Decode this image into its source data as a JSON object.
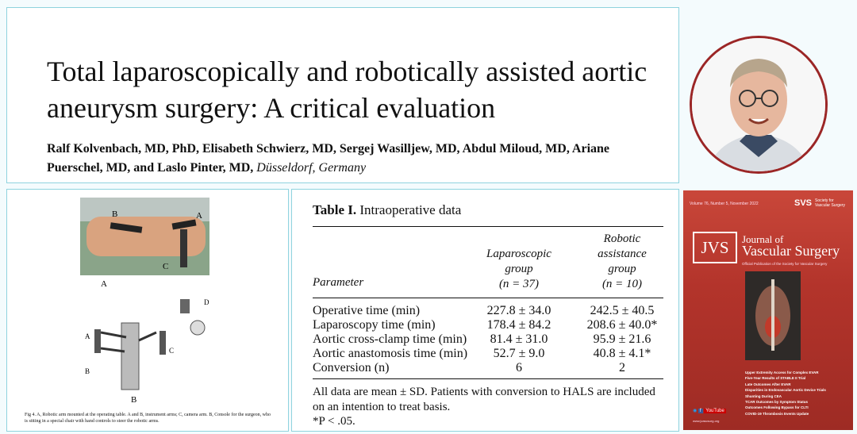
{
  "paper": {
    "title": "Total laparoscopically and robotically assisted aortic aneurysm surgery: A critical evaluation",
    "authors": "Ralf Kolvenbach, MD, PhD, Elisabeth Schwierz, MD, Sergej Wasilljew, MD, Abdul Miloud, MD, Ariane Puerschel, MD, and Laslo Pinter, MD,",
    "location": "Düsseldorf, Germany"
  },
  "figure": {
    "labels": {
      "a": "A",
      "b_top": "B",
      "c_top": "C",
      "a_photo": "A",
      "d": "D",
      "a_left": "A",
      "b_left": "B",
      "c_right": "C",
      "b_bottom": "B"
    },
    "caption": "Fig 4. A, Robotic arm mounted at the operating table. A and B, instrument arms; C, camera arm. B, Console for the surgeon, who is sitting in a special chair with hand controls to steer the robotic arms."
  },
  "table": {
    "title_bold": "Table I.",
    "title_rest": "Intraoperative data",
    "headers": {
      "parameter": "Parameter",
      "lap_l1": "Laparoscopic",
      "lap_l2": "group",
      "lap_l3": "(n = 37)",
      "rob_l1": "Robotic",
      "rob_l2": "assistance",
      "rob_l3": "group",
      "rob_l4": "(n = 10)"
    },
    "rows": [
      {
        "param": "Operative time (min)",
        "lap": "227.8 ± 34.0",
        "rob": "242.5 ± 40.5"
      },
      {
        "param": "Laparoscopy time (min)",
        "lap": "178.4 ± 84.2",
        "rob": "208.6 ± 40.0*"
      },
      {
        "param": "Aortic cross-clamp time (min)",
        "lap": "81.4 ± 31.0",
        "rob": "95.9 ± 21.6"
      },
      {
        "param": "Aortic anastomosis time (min)",
        "lap": "52.7 ± 9.0",
        "rob": "40.8 ± 4.1*"
      },
      {
        "param": "Conversion (n)",
        "lap": "6",
        "rob": "2"
      }
    ],
    "note": "All data are mean ± SD. Patients with conversion to HALS are included on an intention to treat basis.",
    "pvalue": "*P < .05."
  },
  "cover": {
    "volume_line": "Volume 76, Number 5, November 2022",
    "svs": "SVS",
    "svs_text": "Society for Vascular Surgery",
    "jvs": "JVS",
    "journal_of": "Journal of",
    "vascular_surgery": "Vascular Surgery",
    "subtitle": "Official Publication of the Society for Vascular Surgery",
    "articles": [
      "Upper Extremity Access for Complex EVAR",
      "Five-Year Results of STABLE II Trial",
      "Late Outcomes After EVAR",
      "Disparities in Endovascular Aortic Device Trials",
      "Shunting During CEA",
      "TCAR Outcomes by Symptom Status",
      "Outcomes Following Bypass for CLTI",
      "COVID-19 Thrombosis Events Update"
    ],
    "social": "YouTube",
    "website": "www.jvascsurg.org"
  }
}
